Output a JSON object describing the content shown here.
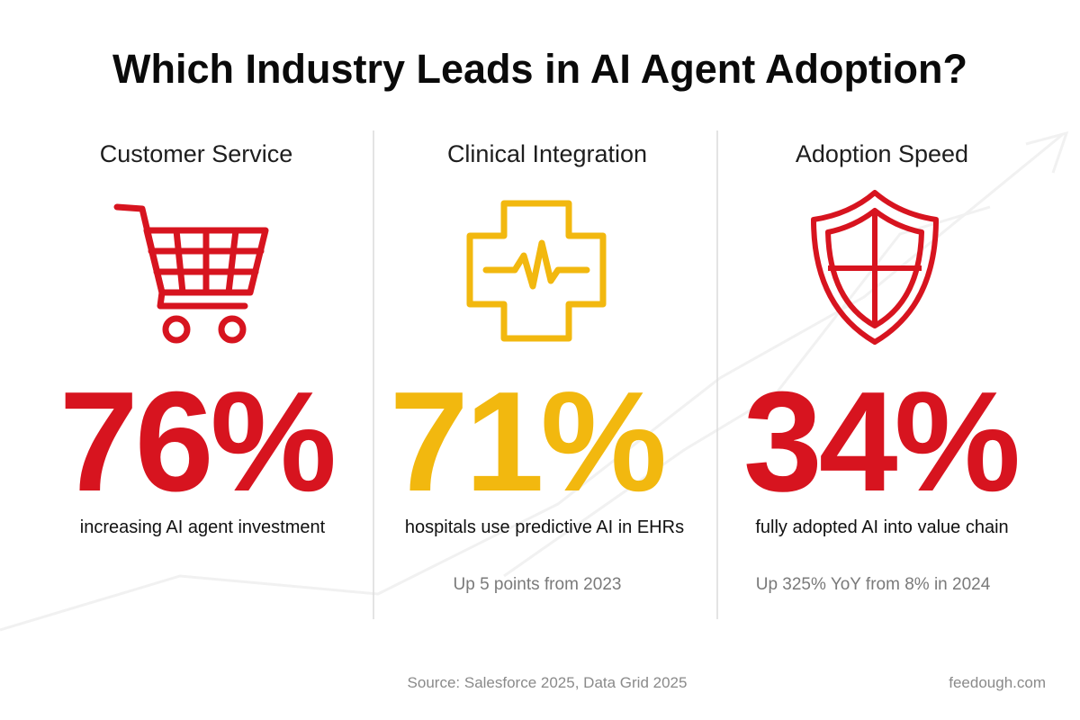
{
  "header": {
    "title": "Which Industry Leads in AI Agent Adoption?"
  },
  "panels": [
    {
      "heading": "Customer Service",
      "stat": "76%",
      "description": "increasing AI agent investment"
    },
    {
      "heading": "Clinical Integration",
      "stat": "71%",
      "description": "hospitals use predictive AI in EHRs",
      "note": "Up 5 points from 2023"
    },
    {
      "heading": "Adoption Speed",
      "stat": "34%",
      "description": "fully adopted AI into value chain",
      "note": "Up 325% YoY from 8% in 2024"
    }
  ],
  "footer": {
    "source": "Source: Salesforce 2025, Data Grid 2025",
    "brand": "feedough.com"
  }
}
